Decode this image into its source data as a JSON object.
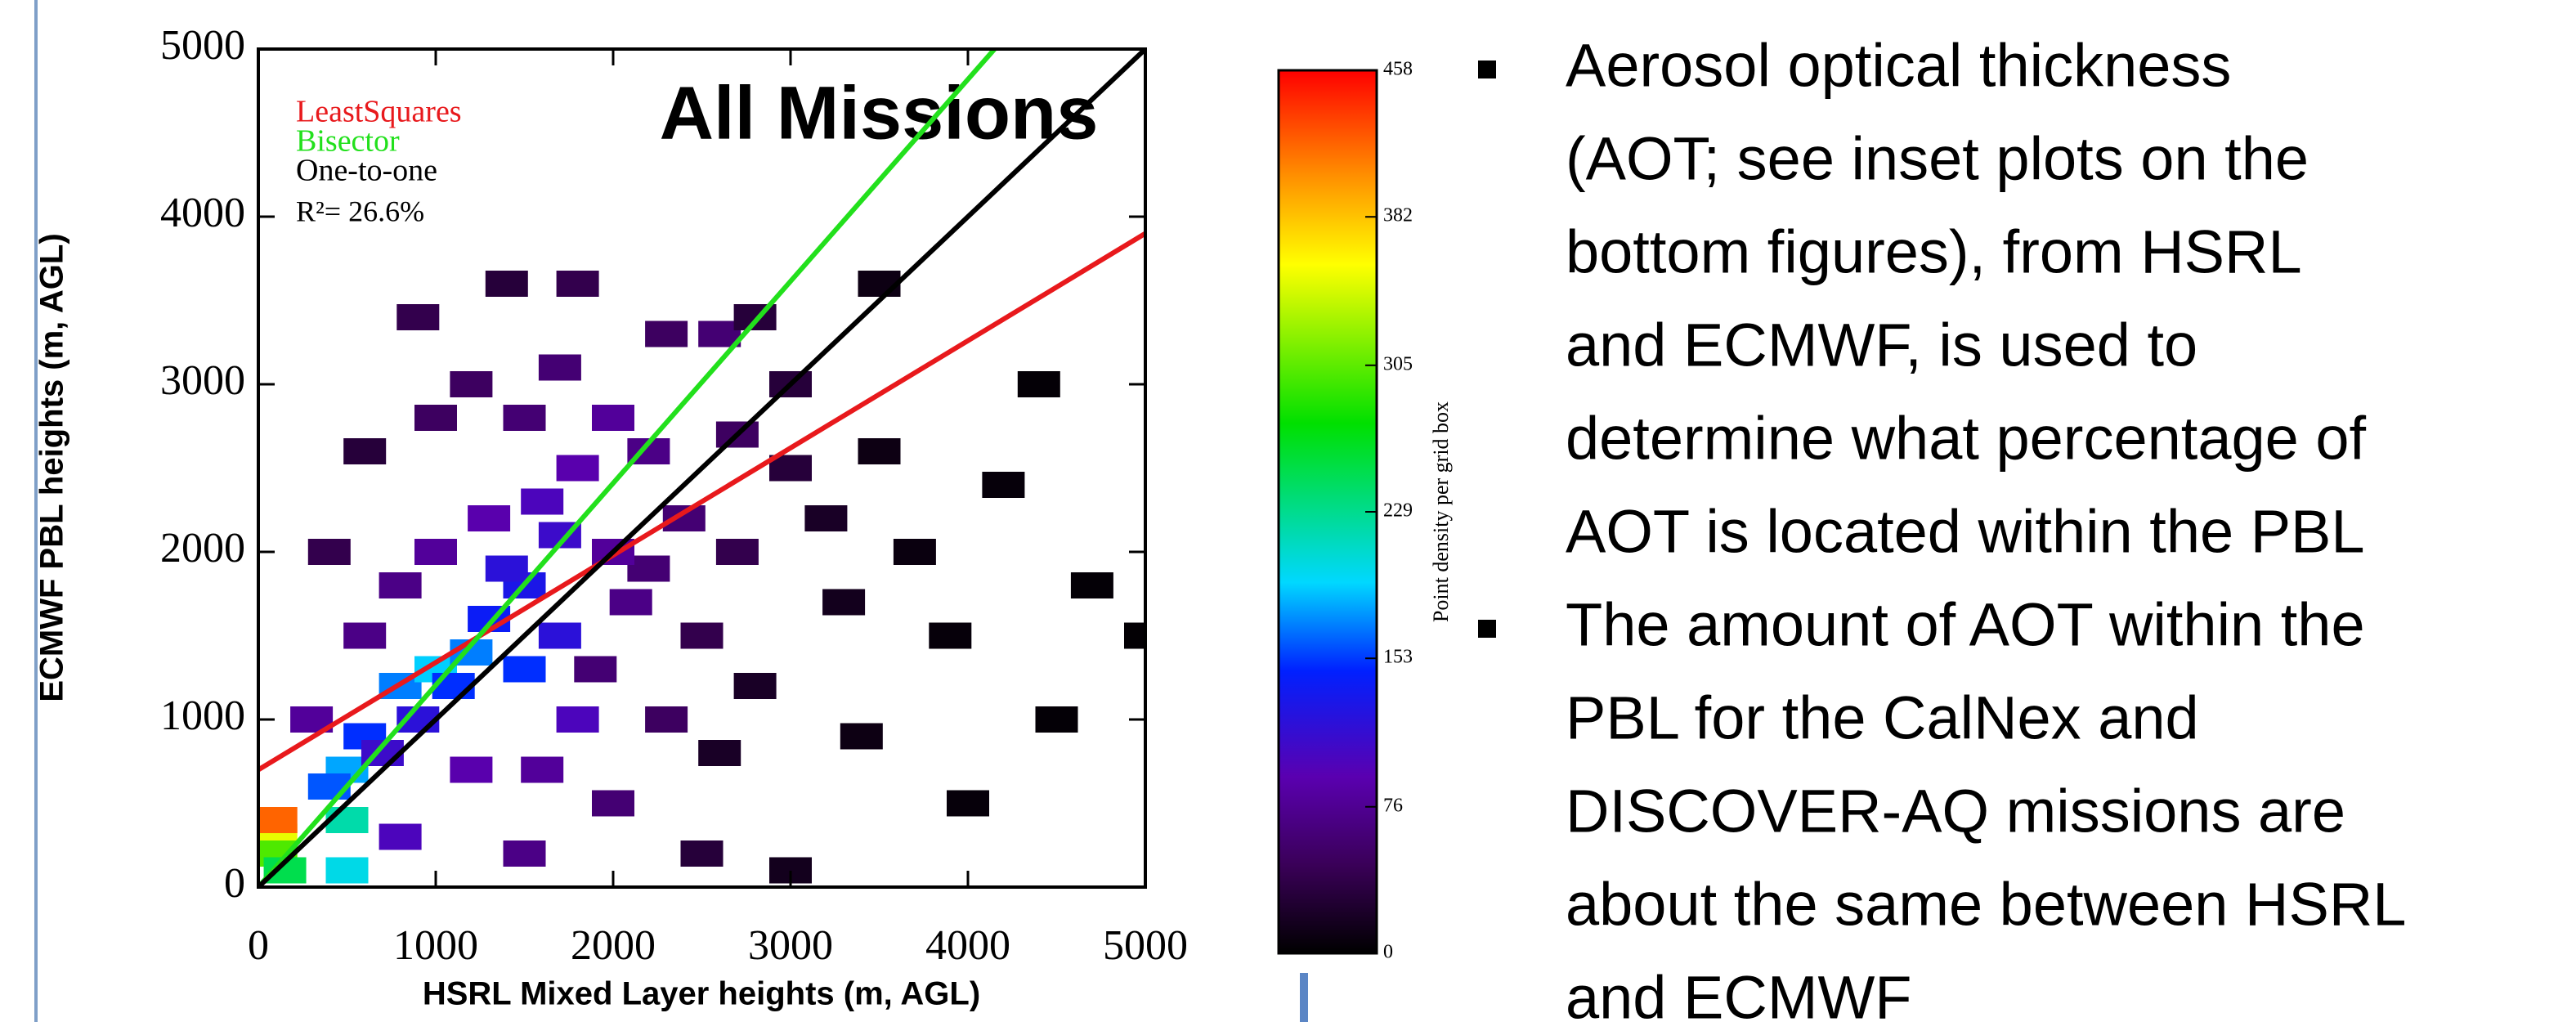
{
  "chart_data": {
    "type": "scatter",
    "title": "All Missions",
    "xlabel": "HSRL Mixed Layer heights (m, AGL)",
    "ylabel": "ECMWF PBL heights (m, AGL)",
    "xlim": [
      0,
      5000
    ],
    "ylim": [
      0,
      5000
    ],
    "xticks": [
      0,
      1000,
      2000,
      3000,
      4000,
      5000
    ],
    "yticks": [
      0,
      1000,
      2000,
      3000,
      4000,
      5000
    ],
    "annotation": "R²= 26.6%",
    "series": [
      {
        "name": "LeastSquares",
        "color": "#e8191c",
        "x": [
          0,
          5000
        ],
        "values": [
          700,
          3900
        ]
      },
      {
        "name": "Bisector",
        "color": "#22e01c",
        "x": [
          0,
          4150
        ],
        "values": [
          0,
          5000
        ]
      },
      {
        "name": "One-to-one",
        "color": "#000000",
        "x": [
          0,
          5000
        ],
        "values": [
          0,
          5000
        ]
      }
    ],
    "density": {
      "x": [
        100,
        100,
        100,
        150,
        500,
        500,
        500,
        400,
        600,
        800,
        1000,
        1200,
        1100,
        1300,
        900,
        700,
        1500,
        1400,
        1700,
        1600,
        1300,
        1000,
        800,
        600,
        1800,
        2000,
        1500,
        1200,
        2200,
        2400,
        2100,
        1900,
        2300,
        2500,
        2700,
        2600,
        2800,
        3000,
        3000,
        3200,
        2800,
        2600,
        3300,
        3500,
        3700,
        3900,
        4200,
        4500,
        4700,
        5000,
        4400,
        3500,
        1800,
        1400,
        900,
        2000,
        1600,
        1200,
        800,
        1500,
        2500,
        3000,
        300,
        400,
        600,
        1000,
        1700,
        2300,
        1800,
        2200,
        3400,
        4000,
        2700,
        1500,
        1700,
        2000
      ],
      "y": [
        300,
        400,
        200,
        100,
        100,
        400,
        700,
        600,
        900,
        1200,
        1300,
        1400,
        1200,
        1600,
        1000,
        800,
        1800,
        1900,
        2100,
        2300,
        2200,
        2000,
        1800,
        1500,
        2500,
        2800,
        2800,
        3000,
        2600,
        2200,
        1700,
        1300,
        1000,
        1500,
        2000,
        3300,
        3400,
        3000,
        2500,
        2200,
        1200,
        800,
        1700,
        2600,
        2000,
        1500,
        2400,
        1000,
        1800,
        1500,
        3000,
        3600,
        3600,
        3600,
        3400,
        500,
        700,
        700,
        300,
        200,
        200,
        100,
        1000,
        2000,
        2600,
        2800,
        3100,
        3300,
        1000,
        1900,
        900,
        500,
        2700,
        1300,
        1500,
        2000
      ],
      "values": [
        350,
        420,
        300,
        250,
        200,
        220,
        180,
        160,
        150,
        170,
        190,
        170,
        150,
        140,
        120,
        110,
        130,
        120,
        110,
        100,
        90,
        80,
        70,
        70,
        90,
        80,
        60,
        50,
        70,
        60,
        70,
        60,
        50,
        40,
        40,
        60,
        30,
        30,
        30,
        20,
        20,
        20,
        15,
        10,
        8,
        5,
        5,
        3,
        3,
        2,
        3,
        10,
        40,
        30,
        40,
        60,
        80,
        90,
        100,
        70,
        30,
        15,
        80,
        40,
        30,
        50,
        60,
        50,
        100,
        60,
        10,
        5,
        50,
        150,
        120,
        80
      ]
    },
    "colorbar": {
      "label": "Point density per grid box",
      "lim": [
        0,
        458
      ],
      "ticks": [
        0,
        76,
        153,
        229,
        305,
        382,
        458
      ]
    }
  },
  "slide": {
    "bullets": [
      [
        "Aerosol optical thickness",
        "(AOT;  see inset plots on the",
        "bottom figures), from HSRL",
        "and ECMWF, is used to",
        "determine what percentage of",
        "AOT is located within the PBL"
      ],
      [
        "The amount of AOT within the",
        "PBL for the CalNex and",
        "DISCOVER-AQ missions are",
        "about the same between HSRL",
        "and ECMWF"
      ]
    ]
  }
}
